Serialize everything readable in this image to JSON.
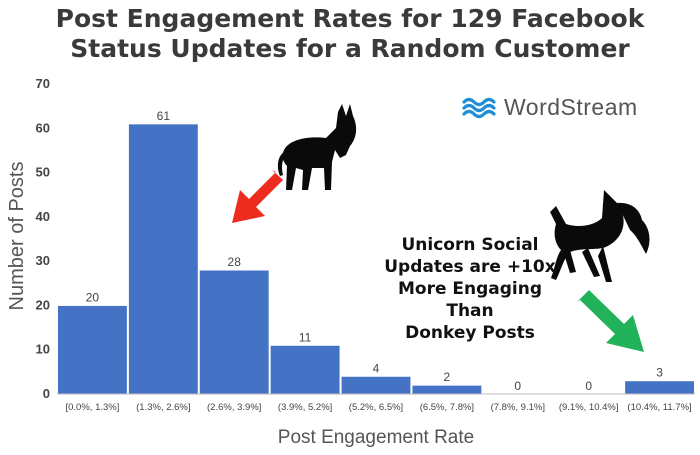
{
  "title_line1": "Post Engagement Rates for 129 Facebook",
  "title_line2": "Status Updates for a Random Customer",
  "logo_text": "WordStream",
  "annotation_lines": [
    "Unicorn Social",
    "Updates are +10x",
    "More Engaging Than",
    "Donkey Posts"
  ],
  "colors": {
    "bar": "#4472c4",
    "logo": "#1f8ed6",
    "red_arrow": "#ee2b1f",
    "green_arrow": "#22b35a"
  },
  "icons": [
    "wordstream-wave-icon",
    "donkey-icon",
    "unicorn-icon",
    "red-arrow-icon",
    "green-arrow-icon"
  ],
  "chart_data": {
    "type": "bar",
    "xlabel": "Post Engagement Rate",
    "ylabel": "Number of Posts",
    "ylim": [
      0,
      70
    ],
    "yticks": [
      0,
      10,
      20,
      30,
      40,
      50,
      60,
      70
    ],
    "grid": false,
    "categories": [
      "[0.0%, 1.3%]",
      "(1.3%, 2.6%]",
      "(2.6%, 3.9%]",
      "(3.9%, 5.2%]",
      "(5.2%, 6.5%]",
      "(6.5%, 7.8%]",
      "(7.8%, 9.1%]",
      "(9.1%, 10.4%]",
      "(10.4%, 11.7%]"
    ],
    "values": [
      20,
      61,
      28,
      11,
      4,
      2,
      0,
      0,
      3
    ]
  }
}
